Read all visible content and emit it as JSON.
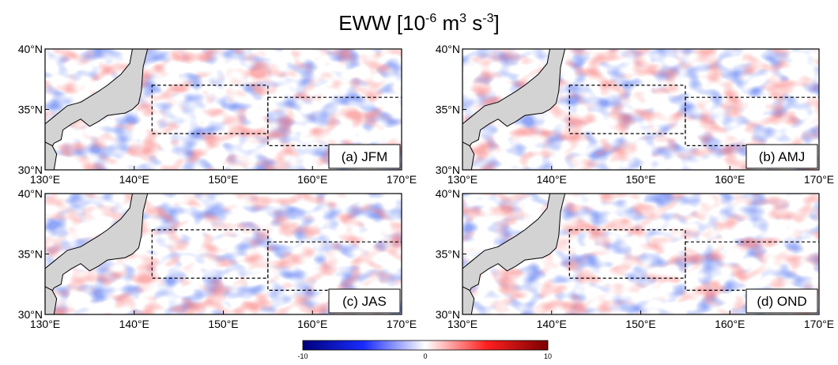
{
  "title": {
    "parts": [
      "EWW [10",
      "-6",
      " m",
      "3",
      " s",
      "-3",
      "]"
    ]
  },
  "panels": [
    {
      "label": "(a) JFM"
    },
    {
      "label": "(b) AMJ"
    },
    {
      "label": "(c) JAS"
    },
    {
      "label": "(d) OND"
    }
  ],
  "lon_labels": [
    "130°E",
    "140°E",
    "150°E",
    "160°E",
    "170°E"
  ],
  "lat_labels": [
    "30°N",
    "35°N",
    "40°N"
  ],
  "colorbar": {
    "ticks": [
      "-10",
      "0",
      "10"
    ]
  }
}
